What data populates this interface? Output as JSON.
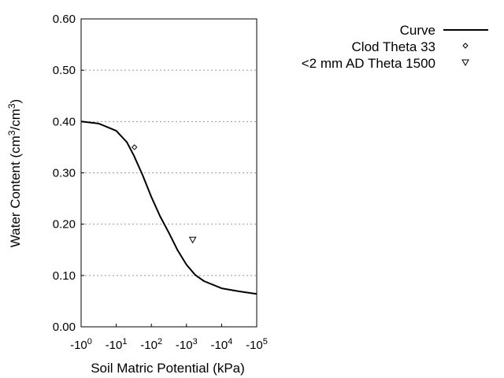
{
  "chart_data": {
    "type": "line",
    "xlabel": "Soil Matric Potential (kPa)",
    "ylabel": {
      "main": "Water Content (cm",
      "sup1": "3",
      "mid": "/cm",
      "sup2": "3",
      "end": ")"
    },
    "x_scale": "log",
    "xlim_exponent": [
      0,
      5
    ],
    "ylim": [
      0,
      0.6
    ],
    "x_ticks": [
      {
        "base": "-10",
        "exp": "0"
      },
      {
        "base": "-10",
        "exp": "1"
      },
      {
        "base": "-10",
        "exp": "2"
      },
      {
        "base": "-10",
        "exp": "3"
      },
      {
        "base": "-10",
        "exp": "4"
      },
      {
        "base": "-10",
        "exp": "5"
      }
    ],
    "y_ticks": [
      "0.00",
      "0.10",
      "0.20",
      "0.30",
      "0.40",
      "0.50",
      "0.60"
    ],
    "grid": "horizontal dotted",
    "legend_placement": "top-right outside",
    "series": [
      {
        "name": "Curve",
        "kind": "line",
        "color": "#000000",
        "x": [
          1,
          3.16,
          10,
          20,
          31.6,
          56.2,
          100,
          178,
          316,
          562,
          1000,
          1778,
          3162,
          10000,
          31623,
          100000
        ],
        "y": [
          0.4,
          0.396,
          0.382,
          0.36,
          0.334,
          0.296,
          0.253,
          0.215,
          0.183,
          0.149,
          0.121,
          0.101,
          0.089,
          0.075,
          0.069,
          0.064
        ]
      },
      {
        "name": "Clod Theta 33",
        "kind": "marker",
        "marker": "diamond",
        "x": [
          33
        ],
        "y": [
          0.35
        ]
      },
      {
        "name": "<2 mm AD Theta 1500",
        "kind": "marker",
        "marker": "triangle-down",
        "x": [
          1500
        ],
        "y": [
          0.17
        ]
      }
    ]
  }
}
